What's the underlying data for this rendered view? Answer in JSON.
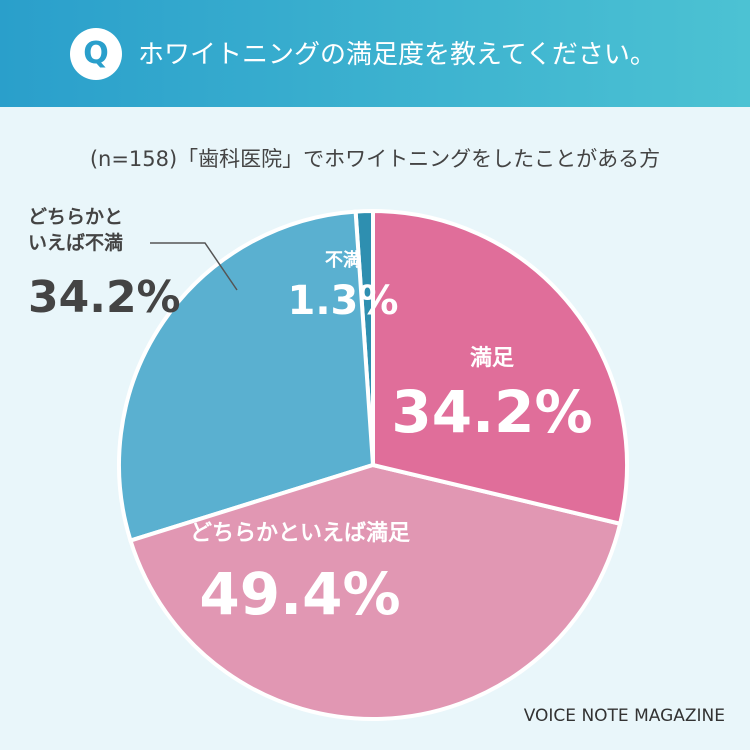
{
  "header": {
    "badge": "Q",
    "question": "ホワイトニングの満足度を教えてください。"
  },
  "chart_data": {
    "type": "pie",
    "title": "(n=158)「歯科医院」でホワイトニングをしたことがある方",
    "categories": [
      "満足",
      "どちらかといえば満足",
      "どちらかといえば不満",
      "不満"
    ],
    "values": [
      34.2,
      49.4,
      34.2,
      1.3
    ],
    "value_labels": [
      "34.2%",
      "49.4%",
      "34.2%",
      "1.3%"
    ],
    "colors": [
      "#e06e9a",
      "#e197b3",
      "#5ab0d0",
      "#2e8fb0"
    ]
  },
  "footer": "VOICE NOTE MAGAZINE"
}
